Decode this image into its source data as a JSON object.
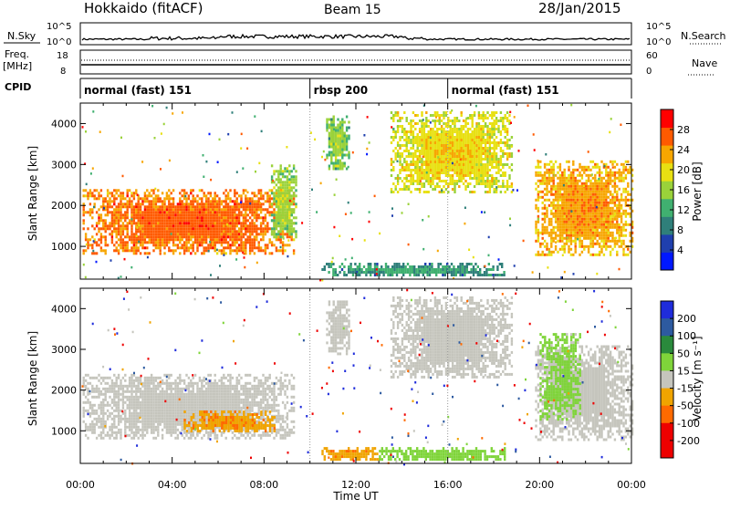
{
  "header": {
    "station": "Hokkaido (fitACF)",
    "beam": "Beam 15",
    "date": "28/Jan/2015"
  },
  "top_strips": {
    "nsky": {
      "label": "N.Sky",
      "right_label": "N.Search",
      "left_ticks": [
        "10^5",
        "10^0"
      ],
      "right_ticks": [
        "10^5",
        "10^0"
      ]
    },
    "freq": {
      "label": "Freq.",
      "unit": "[MHz]",
      "left_ticks": [
        "18",
        "8"
      ],
      "right_ticks": [
        "60",
        "0"
      ],
      "right_label": "Nave"
    },
    "cpid": {
      "label": "CPID",
      "segments": [
        {
          "text": "normal (fast) 151",
          "start_h": 0,
          "end_h": 10
        },
        {
          "text": "rbsp 200",
          "start_h": 10,
          "end_h": 16
        },
        {
          "text": "normal (fast) 151",
          "start_h": 16,
          "end_h": 24
        }
      ]
    }
  },
  "chart_data": [
    {
      "type": "heatmap",
      "title": "",
      "quantity": "Power",
      "ylabel": "Slant Range [km]",
      "xlabel": "",
      "xlim_hours": [
        0,
        24
      ],
      "ylim": [
        200,
        4500
      ],
      "yticks": [
        "1000",
        "2000",
        "3000",
        "4000"
      ],
      "colorbar": {
        "label": "Power [dB]",
        "ticks": [
          "4",
          "8",
          "12",
          "16",
          "20",
          "24",
          "28"
        ],
        "range": [
          0,
          32
        ]
      },
      "regions": [
        {
          "t0": 0.1,
          "t1": 9.3,
          "r0": 800,
          "r1": 2400,
          "value": 29
        },
        {
          "t0": 8.3,
          "t1": 9.4,
          "r0": 1200,
          "r1": 3000,
          "value": 18
        },
        {
          "t0": 10.7,
          "t1": 11.7,
          "r0": 2900,
          "r1": 4200,
          "value": 17
        },
        {
          "t0": 13.5,
          "t1": 18.8,
          "r0": 2300,
          "r1": 4300,
          "value": 22
        },
        {
          "t0": 19.8,
          "t1": 24.0,
          "r0": 800,
          "r1": 3100,
          "value": 26
        },
        {
          "t0": 10.5,
          "t1": 18.5,
          "r0": 300,
          "r1": 600,
          "value": 12
        }
      ]
    },
    {
      "type": "heatmap",
      "title": "",
      "quantity": "Velocity",
      "ylabel": "Slant Range [km]",
      "xlabel": "Time UT",
      "xlim_hours": [
        0,
        24
      ],
      "ylim": [
        200,
        4500
      ],
      "yticks": [
        "1000",
        "2000",
        "3000",
        "4000"
      ],
      "xticks": [
        "00:00",
        "04:00",
        "08:00",
        "12:00",
        "16:00",
        "20:00",
        "00:00"
      ],
      "colorbar": {
        "label": "Velocity [m s⁻¹]",
        "ticks": [
          "200",
          "100",
          "50",
          "15",
          "-15",
          "-50",
          "-100",
          "-200"
        ],
        "range": [
          -250,
          250
        ]
      },
      "regions": [
        {
          "t0": 0.1,
          "t1": 9.3,
          "r0": 800,
          "r1": 2400,
          "value": 0
        },
        {
          "t0": 10.7,
          "t1": 11.7,
          "r0": 2900,
          "r1": 4200,
          "value": 0
        },
        {
          "t0": 13.5,
          "t1": 18.8,
          "r0": 2300,
          "r1": 4300,
          "value": 0
        },
        {
          "t0": 19.8,
          "t1": 24.0,
          "r0": 800,
          "r1": 3100,
          "value": 0
        },
        {
          "t0": 20.0,
          "t1": 21.8,
          "r0": 1300,
          "r1": 3400,
          "value": 25
        },
        {
          "t0": 10.5,
          "t1": 13.0,
          "r0": 300,
          "r1": 600,
          "value": -40
        },
        {
          "t0": 13.0,
          "t1": 18.5,
          "r0": 300,
          "r1": 600,
          "value": 35
        },
        {
          "t0": 4.5,
          "t1": 8.5,
          "r0": 1000,
          "r1": 1500,
          "value": -40
        }
      ]
    }
  ]
}
